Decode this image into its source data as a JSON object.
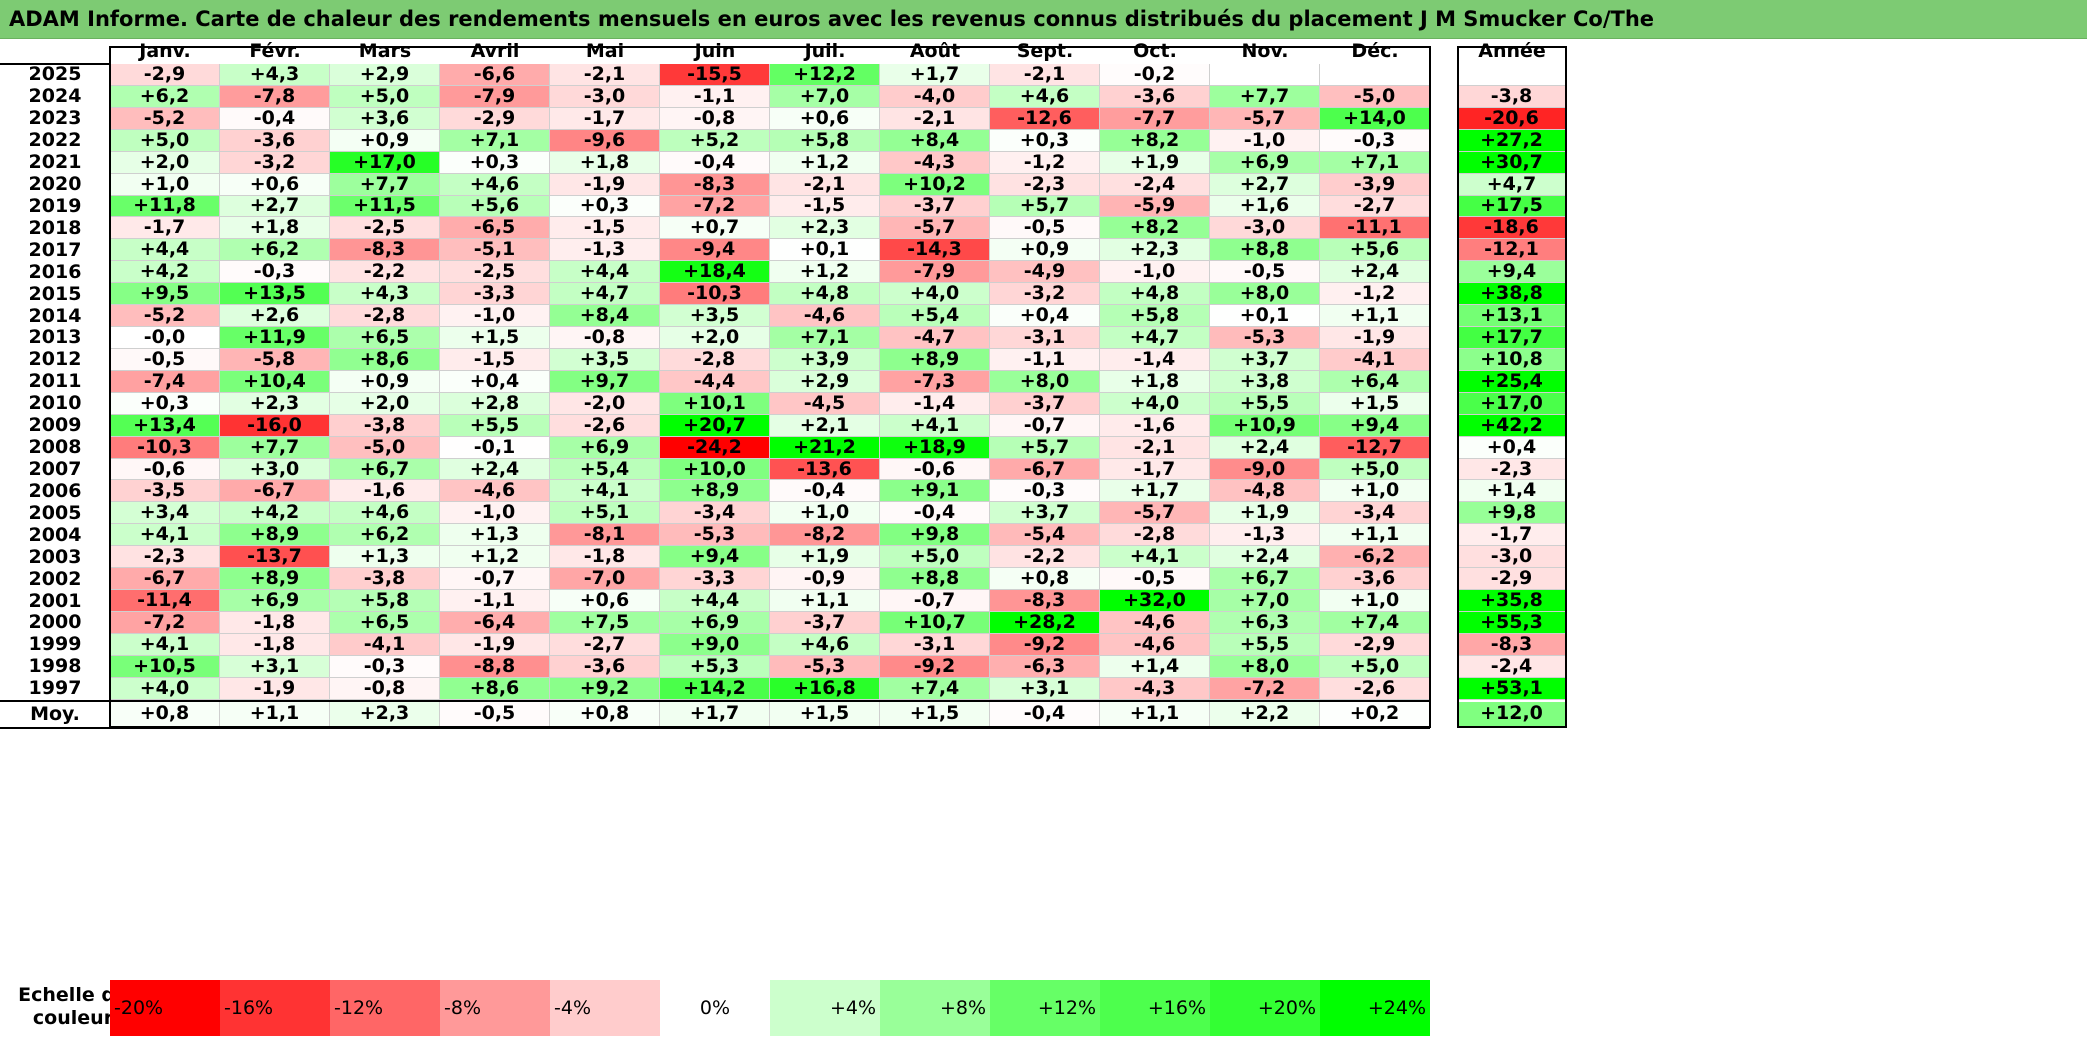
{
  "title": "ADAM Informe. Carte de chaleur des rendements mensuels en euros avec les revenus connus distribués du placement J M Smucker Co/The",
  "chart_data": {
    "type": "heatmap",
    "columns": [
      "Janv.",
      "Févr.",
      "Mars",
      "Avril",
      "Mai",
      "Juin",
      "Juil.",
      "Août",
      "Sept.",
      "Oct.",
      "Nov.",
      "Déc."
    ],
    "annual_header": "Année",
    "avg_label": "Moy.",
    "rows": [
      {
        "year": "2025",
        "values": [
          "-2,9",
          "+4,3",
          "+2,9",
          "-6,6",
          "-2,1",
          "-15,5",
          "+12,2",
          "+1,7",
          "-2,1",
          "-0,2",
          "",
          ""
        ],
        "annual": ""
      },
      {
        "year": "2024",
        "values": [
          "+6,2",
          "-7,8",
          "+5,0",
          "-7,9",
          "-3,0",
          "-1,1",
          "+7,0",
          "-4,0",
          "+4,6",
          "-3,6",
          "+7,7",
          "-5,0"
        ],
        "annual": "-3,8"
      },
      {
        "year": "2023",
        "values": [
          "-5,2",
          "-0,4",
          "+3,6",
          "-2,9",
          "-1,7",
          "-0,8",
          "+0,6",
          "-2,1",
          "-12,6",
          "-7,7",
          "-5,7",
          "+14,0"
        ],
        "annual": "-20,6"
      },
      {
        "year": "2022",
        "values": [
          "+5,0",
          "-3,6",
          "+0,9",
          "+7,1",
          "-9,6",
          "+5,2",
          "+5,8",
          "+8,4",
          "+0,3",
          "+8,2",
          "-1,0",
          "-0,3"
        ],
        "annual": "+27,2"
      },
      {
        "year": "2021",
        "values": [
          "+2,0",
          "-3,2",
          "+17,0",
          "+0,3",
          "+1,8",
          "-0,4",
          "+1,2",
          "-4,3",
          "-1,2",
          "+1,9",
          "+6,9",
          "+7,1"
        ],
        "annual": "+30,7"
      },
      {
        "year": "2020",
        "values": [
          "+1,0",
          "+0,6",
          "+7,7",
          "+4,6",
          "-1,9",
          "-8,3",
          "-2,1",
          "+10,2",
          "-2,3",
          "-2,4",
          "+2,7",
          "-3,9"
        ],
        "annual": "+4,7"
      },
      {
        "year": "2019",
        "values": [
          "+11,8",
          "+2,7",
          "+11,5",
          "+5,6",
          "+0,3",
          "-7,2",
          "-1,5",
          "-3,7",
          "+5,7",
          "-5,9",
          "+1,6",
          "-2,7"
        ],
        "annual": "+17,5"
      },
      {
        "year": "2018",
        "values": [
          "-1,7",
          "+1,8",
          "-2,5",
          "-6,5",
          "-1,5",
          "+0,7",
          "+2,3",
          "-5,7",
          "-0,5",
          "+8,2",
          "-3,0",
          "-11,1"
        ],
        "annual": "-18,6"
      },
      {
        "year": "2017",
        "values": [
          "+4,4",
          "+6,2",
          "-8,3",
          "-5,1",
          "-1,3",
          "-9,4",
          "+0,1",
          "-14,3",
          "+0,9",
          "+2,3",
          "+8,8",
          "+5,6"
        ],
        "annual": "-12,1"
      },
      {
        "year": "2016",
        "values": [
          "+4,2",
          "-0,3",
          "-2,2",
          "-2,5",
          "+4,4",
          "+18,4",
          "+1,2",
          "-7,9",
          "-4,9",
          "-1,0",
          "-0,5",
          "+2,4"
        ],
        "annual": "+9,4"
      },
      {
        "year": "2015",
        "values": [
          "+9,5",
          "+13,5",
          "+4,3",
          "-3,3",
          "+4,7",
          "-10,3",
          "+4,8",
          "+4,0",
          "-3,2",
          "+4,8",
          "+8,0",
          "-1,2"
        ],
        "annual": "+38,8"
      },
      {
        "year": "2014",
        "values": [
          "-5,2",
          "+2,6",
          "-2,8",
          "-1,0",
          "+8,4",
          "+3,5",
          "-4,6",
          "+5,4",
          "+0,4",
          "+5,8",
          "+0,1",
          "+1,1"
        ],
        "annual": "+13,1"
      },
      {
        "year": "2013",
        "values": [
          "-0,0",
          "+11,9",
          "+6,5",
          "+1,5",
          "-0,8",
          "+2,0",
          "+7,1",
          "-4,7",
          "-3,1",
          "+4,7",
          "-5,3",
          "-1,9"
        ],
        "annual": "+17,7"
      },
      {
        "year": "2012",
        "values": [
          "-0,5",
          "-5,8",
          "+8,6",
          "-1,5",
          "+3,5",
          "-2,8",
          "+3,9",
          "+8,9",
          "-1,1",
          "-1,4",
          "+3,7",
          "-4,1"
        ],
        "annual": "+10,8"
      },
      {
        "year": "2011",
        "values": [
          "-7,4",
          "+10,4",
          "+0,9",
          "+0,4",
          "+9,7",
          "-4,4",
          "+2,9",
          "-7,3",
          "+8,0",
          "+1,8",
          "+3,8",
          "+6,4"
        ],
        "annual": "+25,4"
      },
      {
        "year": "2010",
        "values": [
          "+0,3",
          "+2,3",
          "+2,0",
          "+2,8",
          "-2,0",
          "+10,1",
          "-4,5",
          "-1,4",
          "-3,7",
          "+4,0",
          "+5,5",
          "+1,5"
        ],
        "annual": "+17,0"
      },
      {
        "year": "2009",
        "values": [
          "+13,4",
          "-16,0",
          "-3,8",
          "+5,5",
          "-2,6",
          "+20,7",
          "+2,1",
          "+4,1",
          "-0,7",
          "-1,6",
          "+10,9",
          "+9,4"
        ],
        "annual": "+42,2"
      },
      {
        "year": "2008",
        "values": [
          "-10,3",
          "+7,7",
          "-5,0",
          "-0,1",
          "+6,9",
          "-24,2",
          "+21,2",
          "+18,9",
          "+5,7",
          "-2,1",
          "+2,4",
          "-12,7"
        ],
        "annual": "+0,4"
      },
      {
        "year": "2007",
        "values": [
          "-0,6",
          "+3,0",
          "+6,7",
          "+2,4",
          "+5,4",
          "+10,0",
          "-13,6",
          "-0,6",
          "-6,7",
          "-1,7",
          "-9,0",
          "+5,0"
        ],
        "annual": "-2,3"
      },
      {
        "year": "2006",
        "values": [
          "-3,5",
          "-6,7",
          "-1,6",
          "-4,6",
          "+4,1",
          "+8,9",
          "-0,4",
          "+9,1",
          "-0,3",
          "+1,7",
          "-4,8",
          "+1,0"
        ],
        "annual": "+1,4"
      },
      {
        "year": "2005",
        "values": [
          "+3,4",
          "+4,2",
          "+4,6",
          "-1,0",
          "+5,1",
          "-3,4",
          "+1,0",
          "-0,4",
          "+3,7",
          "-5,7",
          "+1,9",
          "-3,4"
        ],
        "annual": "+9,8"
      },
      {
        "year": "2004",
        "values": [
          "+4,1",
          "+8,9",
          "+6,2",
          "+1,3",
          "-8,1",
          "-5,3",
          "-8,2",
          "+9,8",
          "-5,4",
          "-2,8",
          "-1,3",
          "+1,1"
        ],
        "annual": "-1,7"
      },
      {
        "year": "2003",
        "values": [
          "-2,3",
          "-13,7",
          "+1,3",
          "+1,2",
          "-1,8",
          "+9,4",
          "+1,9",
          "+5,0",
          "-2,2",
          "+4,1",
          "+2,4",
          "-6,2"
        ],
        "annual": "-3,0"
      },
      {
        "year": "2002",
        "values": [
          "-6,7",
          "+8,9",
          "-3,8",
          "-0,7",
          "-7,0",
          "-3,3",
          "-0,9",
          "+8,8",
          "+0,8",
          "-0,5",
          "+6,7",
          "-3,6"
        ],
        "annual": "-2,9"
      },
      {
        "year": "2001",
        "values": [
          "-11,4",
          "+6,9",
          "+5,8",
          "-1,1",
          "+0,6",
          "+4,4",
          "+1,1",
          "-0,7",
          "-8,3",
          "+32,0",
          "+7,0",
          "+1,0"
        ],
        "annual": "+35,8"
      },
      {
        "year": "2000",
        "values": [
          "-7,2",
          "-1,8",
          "+6,5",
          "-6,4",
          "+7,5",
          "+6,9",
          "-3,7",
          "+10,7",
          "+28,2",
          "-4,6",
          "+6,3",
          "+7,4"
        ],
        "annual": "+55,3"
      },
      {
        "year": "1999",
        "values": [
          "+4,1",
          "-1,8",
          "-4,1",
          "-1,9",
          "-2,7",
          "+9,0",
          "+4,6",
          "-3,1",
          "-9,2",
          "-4,6",
          "+5,5",
          "-2,9"
        ],
        "annual": "-8,3"
      },
      {
        "year": "1998",
        "values": [
          "+10,5",
          "+3,1",
          "-0,3",
          "-8,8",
          "-3,6",
          "+5,3",
          "-5,3",
          "-9,2",
          "-6,3",
          "+1,4",
          "+8,0",
          "+5,0"
        ],
        "annual": "-2,4"
      },
      {
        "year": "1997",
        "values": [
          "+4,0",
          "-1,9",
          "-0,8",
          "+8,6",
          "+9,2",
          "+14,2",
          "+16,8",
          "+7,4",
          "+3,1",
          "-4,3",
          "-7,2",
          "-2,6"
        ],
        "annual": "+53,1"
      }
    ],
    "averages": [
      "+0,8",
      "+1,1",
      "+2,3",
      "-0,5",
      "+0,8",
      "+1,7",
      "+1,5",
      "+1,5",
      "-0,4",
      "+1,1",
      "+2,2",
      "+0,2"
    ],
    "average_annual": "+12,0",
    "scale_label": "Echelle de couleur",
    "scale": [
      {
        "label": "-20%",
        "color": "#ff0000"
      },
      {
        "label": "-16%",
        "color": "#ff3333"
      },
      {
        "label": "-12%",
        "color": "#ff6666"
      },
      {
        "label": "-8%",
        "color": "#ff9999"
      },
      {
        "label": "-4%",
        "color": "#ffcccc"
      },
      {
        "label": "0%",
        "color": "#ffffff"
      },
      {
        "label": "+4%",
        "color": "#ccffcc"
      },
      {
        "label": "+8%",
        "color": "#99ff99"
      },
      {
        "label": "+12%",
        "color": "#66ff66"
      },
      {
        "label": "+16%",
        "color": "#4dff4d"
      },
      {
        "label": "+20%",
        "color": "#33ff33"
      },
      {
        "label": "+24%",
        "color": "#00ff00"
      }
    ]
  }
}
